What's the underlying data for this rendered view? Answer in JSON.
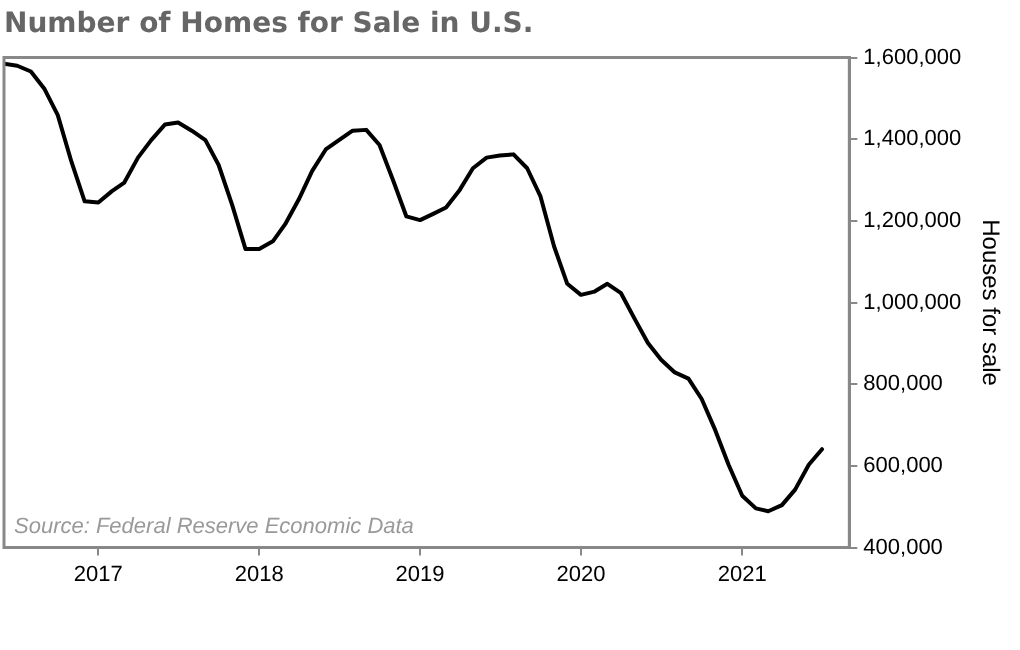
{
  "chart_data": {
    "type": "line",
    "title": "Number of Homes for Sale in U.S.",
    "y2label": "Houses for sale",
    "annotations": [
      "Source: Federal Reserve Economic Data"
    ],
    "x": [
      "2016-06",
      "2016-07",
      "2016-08",
      "2016-09",
      "2016-10",
      "2016-11",
      "2016-12",
      "2017-01",
      "2017-02",
      "2017-03",
      "2017-04",
      "2017-05",
      "2017-06",
      "2017-07",
      "2017-08",
      "2017-09",
      "2017-10",
      "2017-11",
      "2017-12",
      "2018-01",
      "2018-02",
      "2018-03",
      "2018-04",
      "2018-05",
      "2018-06",
      "2018-07",
      "2018-08",
      "2018-09",
      "2018-10",
      "2018-11",
      "2018-12",
      "2019-01",
      "2019-02",
      "2019-03",
      "2019-04",
      "2019-05",
      "2019-06",
      "2019-07",
      "2019-08",
      "2019-09",
      "2019-10",
      "2019-11",
      "2019-12",
      "2020-01",
      "2020-02",
      "2020-03",
      "2020-04",
      "2020-05",
      "2020-06",
      "2020-07",
      "2020-08",
      "2020-09",
      "2020-10",
      "2020-11",
      "2020-12",
      "2021-01",
      "2021-02",
      "2021-03",
      "2021-04",
      "2021-05",
      "2021-06",
      "2021-07"
    ],
    "series": [
      {
        "color": "#000000",
        "axis": "y2",
        "values": [
          1585000,
          1580000,
          1566000,
          1523000,
          1459000,
          1345000,
          1248000,
          1245000,
          1273000,
          1294000,
          1355000,
          1398000,
          1436000,
          1441000,
          1421000,
          1398000,
          1337000,
          1238000,
          1131000,
          1131000,
          1150000,
          1192000,
          1253000,
          1322000,
          1375000,
          1398000,
          1421000,
          1423000,
          1386000,
          1299000,
          1211000,
          1202000,
          1218000,
          1233000,
          1276000,
          1329000,
          1355000,
          1360000,
          1363000,
          1329000,
          1261000,
          1138000,
          1046000,
          1019000,
          1027000,
          1046000,
          1023000,
          962000,
          901000,
          860000,
          829000,
          814000,
          764000,
          687000,
          603000,
          527000,
          496000,
          489000,
          504000,
          542000,
          603000,
          641000
        ]
      }
    ],
    "xlim": [
      "2016-06",
      "2021-09"
    ],
    "xticks": [
      "2017",
      "2018",
      "2019",
      "2020",
      "2021"
    ],
    "y2lim": [
      400000,
      1600000
    ],
    "y2ticks": [
      {
        "value": 400000,
        "label": "400,000"
      },
      {
        "value": 600000,
        "label": "600,000"
      },
      {
        "value": 800000,
        "label": "800,000"
      },
      {
        "value": 1000000,
        "label": "1,000,000"
      },
      {
        "value": 1200000,
        "label": "1,200,000"
      },
      {
        "value": 1400000,
        "label": "1,400,000"
      },
      {
        "value": 1600000,
        "label": "1,600,000"
      }
    ],
    "grid": false,
    "legend": false,
    "marker": "none",
    "line_style": "solid"
  }
}
